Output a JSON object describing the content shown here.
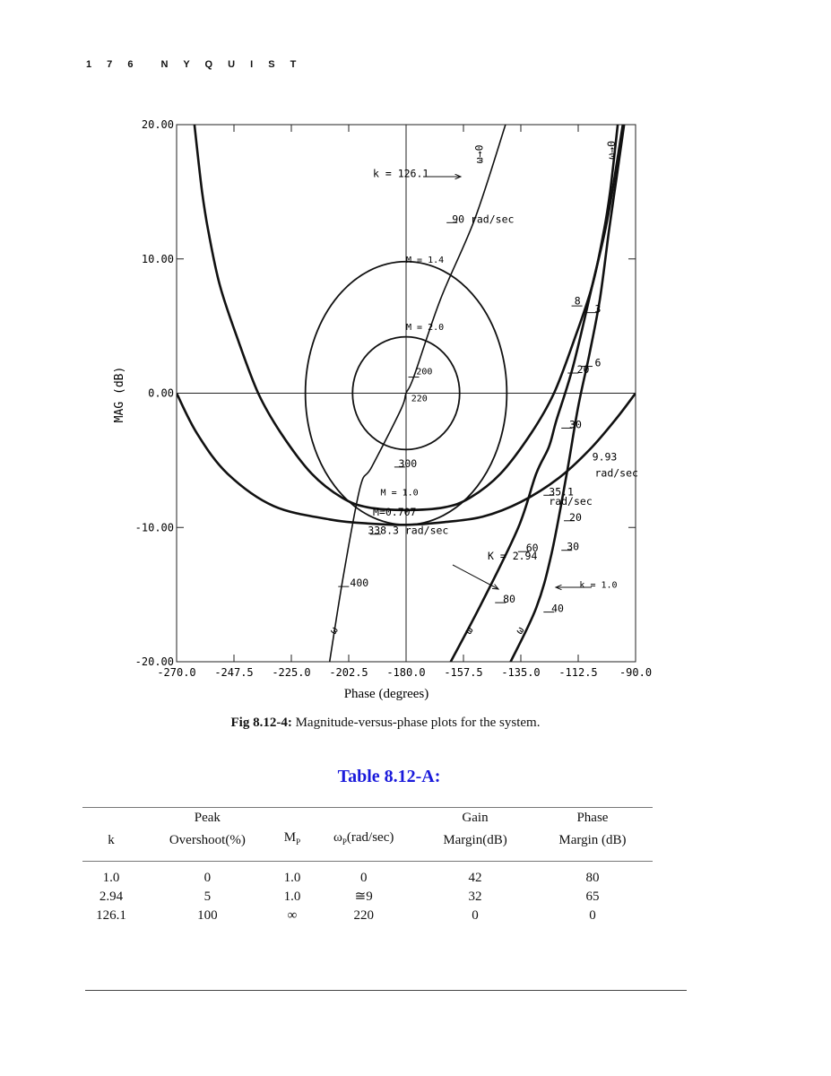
{
  "header": {
    "page_number": "1 7 6",
    "section": "N Y Q U I S T"
  },
  "chart_data": {
    "type": "line",
    "title": "",
    "xlabel": "Phase (degrees)",
    "ylabel": "MAG (dB)",
    "xlim": [
      -270,
      -90
    ],
    "ylim": [
      -20,
      20
    ],
    "grid": false,
    "x_tick_labels": [
      "-270.0",
      "-247.5",
      "-225.0",
      "-202.5",
      "-180.0",
      "-157.5",
      "-135.0",
      "-112.5",
      "-90.0"
    ],
    "y_tick_labels": [
      "20.00",
      "10.00",
      "0.00",
      "-10.00",
      "-20.00"
    ],
    "m_circles": [
      {
        "name": "M = 2.0",
        "center": [
          -180,
          0
        ],
        "radius_deg": 21,
        "radius_db": 4.2
      },
      {
        "name": "M = 1.4",
        "center": [
          -180,
          0
        ],
        "radius_deg": 39.5,
        "radius_db": 9.8
      }
    ],
    "series": [
      {
        "name": "M = 1.0",
        "points": [
          [
            -263,
            20
          ],
          [
            -260,
            15
          ],
          [
            -257.5,
            12
          ],
          [
            -253,
            8
          ],
          [
            -246,
            4
          ],
          [
            -238,
            0
          ],
          [
            -229,
            -3
          ],
          [
            -217,
            -6
          ],
          [
            -205,
            -7.8
          ],
          [
            -195,
            -8.5
          ],
          [
            -180,
            -8.7
          ],
          [
            -165,
            -8.5
          ],
          [
            -155,
            -7.8
          ],
          [
            -143,
            -6
          ],
          [
            -131,
            -3
          ],
          [
            -122,
            0
          ],
          [
            -114,
            4
          ],
          [
            -107,
            8
          ],
          [
            -102.5,
            12
          ],
          [
            -100,
            15
          ],
          [
            -97,
            20
          ]
        ]
      },
      {
        "name": "M = 0.707",
        "points": [
          [
            -270,
            0
          ],
          [
            -262,
            -3
          ],
          [
            -250,
            -6
          ],
          [
            -232,
            -8.4
          ],
          [
            -210,
            -9.4
          ],
          [
            -195,
            -9.7
          ],
          [
            -180,
            -9.8
          ],
          [
            -165,
            -9.6
          ],
          [
            -150,
            -9.2
          ],
          [
            -135,
            -8.1
          ],
          [
            -120,
            -6.3
          ],
          [
            -108,
            -4.2
          ],
          [
            -98,
            -2
          ],
          [
            -90,
            0
          ]
        ]
      },
      {
        "name": "k = 126.1",
        "points": [
          [
            -210,
            -20
          ],
          [
            -204.5,
            -13.5
          ],
          [
            -198,
            -7
          ],
          [
            -193.5,
            -5.5
          ],
          [
            -182,
            -1.2
          ],
          [
            -180,
            0
          ],
          [
            -177,
            1.2
          ],
          [
            -166.5,
            7
          ],
          [
            -153,
            13
          ],
          [
            -141,
            20
          ]
        ]
      },
      {
        "name": "K = 2.94",
        "points": [
          [
            -162.5,
            -20
          ],
          [
            -150,
            -15.5
          ],
          [
            -136,
            -10
          ],
          [
            -129,
            -6
          ],
          [
            -124,
            -4
          ],
          [
            -121,
            -2
          ],
          [
            -114.5,
            2
          ],
          [
            -107,
            8
          ],
          [
            -101,
            13
          ],
          [
            -95,
            20
          ]
        ]
      },
      {
        "name": "k = 1.0",
        "points": [
          [
            -139,
            -20
          ],
          [
            -129,
            -16
          ],
          [
            -123,
            -12
          ],
          [
            -117,
            -6
          ],
          [
            -112.5,
            -1
          ],
          [
            -108,
            3
          ],
          [
            -104,
            7
          ],
          [
            -100.5,
            12
          ],
          [
            -97.5,
            16
          ],
          [
            -94.5,
            20
          ]
        ]
      }
    ],
    "annotations": [
      {
        "text": "k = 126.1",
        "x": -193,
        "y": 16.1
      },
      {
        "text": "90 rad/sec",
        "x": -162,
        "y": 12.7
      },
      {
        "text": "M = 1.4",
        "x": -180,
        "y": 9.7
      },
      {
        "text": "M = 2.0",
        "x": -180,
        "y": 4.7
      },
      {
        "text": "200",
        "x": -176,
        "y": 1.4
      },
      {
        "text": "220",
        "x": -178,
        "y": -0.6
      },
      {
        "text": "300",
        "x": -183,
        "y": -5.5
      },
      {
        "text": "M = 1.0",
        "x": -190,
        "y": -7.6
      },
      {
        "text": "M=0.707",
        "x": -193,
        "y": -9.1
      },
      {
        "text": "338.3 rad/sec",
        "x": -195,
        "y": -10.5
      },
      {
        "text": "K = 2.94",
        "x": -148,
        "y": -12.4
      },
      {
        "text": "400",
        "x": -202,
        "y": -14.4
      },
      {
        "text": "8",
        "x": -114,
        "y": 6.6
      },
      {
        "text": "3",
        "x": -106,
        "y": 6
      },
      {
        "text": "20",
        "x": -113,
        "y": 1.5
      },
      {
        "text": "6",
        "x": -106,
        "y": 2
      },
      {
        "text": "30",
        "x": -116,
        "y": -2.6
      },
      {
        "text": "9.93",
        "x": -107,
        "y": -5
      },
      {
        "text": "rad/sec",
        "x": -106,
        "y": -6.2
      },
      {
        "text": "35.1",
        "x": -124,
        "y": -7.6
      },
      {
        "text": "rad/sec",
        "x": -124,
        "y": -8.3
      },
      {
        "text": "20",
        "x": -116,
        "y": -9.5
      },
      {
        "text": "60",
        "x": -133,
        "y": -11.8
      },
      {
        "text": "30",
        "x": -117,
        "y": -11.7
      },
      {
        "text": "k = 1.0",
        "x": -112,
        "y": -14.5
      },
      {
        "text": "80",
        "x": -142,
        "y": -15.6
      },
      {
        "text": "40",
        "x": -123,
        "y": -16.3
      },
      {
        "text": "ω→0",
        "x": -150,
        "y": 18.5
      },
      {
        "text": "ω→0",
        "x": -98,
        "y": 18.8
      },
      {
        "text": "ω",
        "x": -208,
        "y": -18
      },
      {
        "text": "ω",
        "x": -155,
        "y": -18
      },
      {
        "text": "ω",
        "x": -135,
        "y": -18
      }
    ]
  },
  "caption": {
    "label": "Fig 8.12-4:",
    "text": " Magnitude-versus-phase plots for the system."
  },
  "table": {
    "title": "Table 8.12-A:",
    "header_top": [
      "",
      "Peak",
      "",
      "",
      "Gain",
      "Phase"
    ],
    "header_bottom": [
      "k",
      "Overshoot(%)",
      "M",
      "ω",
      "Margin(dB)",
      "Margin (dB)"
    ],
    "header_sub": {
      "mp": "P",
      "wp": "P",
      "wp_unit": "(rad/sec)"
    },
    "rows": [
      [
        "1.0",
        "0",
        "1.0",
        "0",
        "42",
        "80"
      ],
      [
        "2.94",
        "5",
        "1.0",
        "≅9",
        "32",
        "65"
      ],
      [
        "126.1",
        "100",
        "∞",
        "220",
        "0",
        "0"
      ]
    ]
  }
}
